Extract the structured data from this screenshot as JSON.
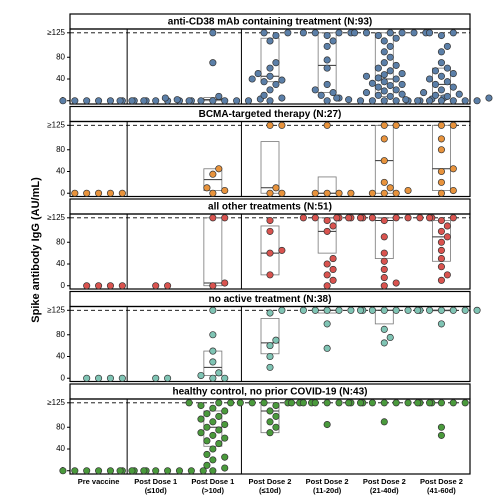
{
  "chart_data": {
    "type": "beeswarm",
    "ylabel": "Spike antibody IgG (AU/mL)",
    "categories": [
      [
        "Pre vaccine"
      ],
      [
        "Post Dose 1",
        "(≤10d)"
      ],
      [
        "Post Dose 1",
        "(>10d)"
      ],
      [
        "Post Dose 2",
        "(≤10d)"
      ],
      [
        "Post Dose 2",
        "(11-20d)"
      ],
      [
        "Post Dose 2",
        "(21-40d)"
      ],
      [
        "Post Dose 2",
        "(41-60d)"
      ]
    ],
    "ylim": [
      -6,
      132
    ],
    "yticks": [
      0,
      40,
      80,
      {
        "value": 125,
        "label": "≥125"
      }
    ],
    "ref_line": 125,
    "facets": [
      {
        "title": "anti-CD38 mAb containing treatment (N:93)",
        "color": "#5b7fa8",
        "groups": [
          {
            "values": [
              0,
              0,
              0,
              0,
              0,
              0,
              0,
              0
            ]
          },
          {
            "values": [
              0,
              0,
              0,
              0,
              0,
              0,
              0
            ]
          },
          {
            "values": [
              0,
              0,
              0,
              0,
              0,
              0,
              2,
              3,
              5,
              8,
              70,
              125
            ],
            "box": {
              "q1": 0,
              "median": 2,
              "q3": 6
            }
          },
          {
            "values": [
              0,
              5,
              10,
              20,
              30,
              35,
              38,
              40,
              45,
              50,
              60,
              70,
              110,
              120,
              125,
              125
            ],
            "box": {
              "q1": 35,
              "median": 45,
              "q3": 115
            }
          },
          {
            "values": [
              0,
              5,
              10,
              15,
              20,
              30,
              60,
              75,
              100,
              110,
              120,
              125,
              125,
              125,
              125
            ],
            "box": {
              "q1": 15,
              "median": 65,
              "q3": 125
            }
          },
          {
            "values": [
              0,
              0,
              0,
              0,
              0,
              0,
              2,
              3,
              5,
              5,
              8,
              10,
              12,
              15,
              18,
              20,
              25,
              28,
              30,
              32,
              35,
              40,
              42,
              45,
              48,
              50,
              55,
              60,
              65,
              70,
              80,
              90,
              100,
              110,
              115,
              120,
              125,
              125,
              125,
              125,
              125,
              125
            ],
            "box": {
              "q1": 8,
              "median": 40,
              "q3": 125
            }
          },
          {
            "values": [
              0,
              0,
              0,
              0,
              0,
              0,
              2,
              5,
              8,
              10,
              12,
              15,
              20,
              25,
              30,
              35,
              40,
              45,
              50,
              55,
              60,
              70,
              90,
              100,
              120,
              125,
              125
            ],
            "box": {
              "q1": 10,
              "median": 30,
              "q3": 60
            }
          }
        ]
      },
      {
        "title": "BCMA-targeted therapy (N:27)",
        "color": "#e8933c",
        "groups": [
          {
            "values": [
              0,
              0,
              0,
              0,
              0
            ]
          },
          {
            "values": []
          },
          {
            "values": [
              0,
              5,
              10,
              35,
              45
            ],
            "box": {
              "q1": 5,
              "median": 25,
              "q3": 45
            }
          },
          {
            "values": [
              0,
              0,
              10,
              125,
              125
            ],
            "box": {
              "q1": 0,
              "median": 10,
              "q3": 95
            }
          },
          {
            "values": [
              0,
              0,
              0,
              0,
              125
            ],
            "box": {
              "q1": 0,
              "median": 0,
              "q3": 30
            }
          },
          {
            "values": [
              0,
              0,
              0,
              5,
              10,
              20,
              60,
              100,
              125,
              125
            ],
            "box": {
              "q1": 0,
              "median": 60,
              "q3": 125
            }
          },
          {
            "values": [
              0,
              5,
              20,
              40,
              45,
              80,
              100,
              125,
              125
            ],
            "box": {
              "q1": 5,
              "median": 45,
              "q3": 125
            }
          }
        ]
      },
      {
        "title": "all other treatments (N:51)",
        "color": "#d9534f",
        "groups": [
          {
            "values": [
              0,
              0,
              0,
              0
            ]
          },
          {
            "values": [
              0,
              0
            ]
          },
          {
            "values": [
              0,
              5,
              125,
              125
            ],
            "box": {
              "q1": 0,
              "median": 5,
              "q3": 125
            }
          },
          {
            "values": [
              20,
              60,
              65,
              100,
              120
            ],
            "box": {
              "q1": 20,
              "median": 60,
              "q3": 110
            }
          },
          {
            "values": [
              0,
              10,
              20,
              30,
              40,
              50,
              100,
              110,
              120,
              125,
              125,
              125,
              125,
              125
            ],
            "box": {
              "q1": 60,
              "median": 100,
              "q3": 125
            }
          },
          {
            "values": [
              0,
              5,
              15,
              30,
              45,
              60,
              90,
              120,
              125,
              125,
              125,
              125,
              125,
              125,
              125,
              125
            ],
            "box": {
              "q1": 50,
              "median": 120,
              "q3": 125
            }
          },
          {
            "values": [
              10,
              20,
              35,
              50,
              65,
              80,
              90,
              100,
              110,
              120,
              125,
              125
            ],
            "box": {
              "q1": 45,
              "median": 90,
              "q3": 120
            }
          }
        ]
      },
      {
        "title": "no active treatment (N:38)",
        "color": "#7fc4b4",
        "groups": [
          {
            "values": [
              0,
              0,
              0,
              0
            ]
          },
          {
            "values": [
              0,
              0
            ]
          },
          {
            "values": [
              0,
              0,
              5,
              10,
              30,
              50,
              80,
              125
            ],
            "box": {
              "q1": 5,
              "median": 20,
              "q3": 50
            }
          },
          {
            "values": [
              20,
              40,
              60,
              70,
              120,
              125
            ],
            "box": {
              "q1": 45,
              "median": 65,
              "q3": 110
            }
          },
          {
            "values": [
              55,
              100,
              125,
              125,
              125,
              125,
              125,
              125
            ],
            "box": {
              "q1": 120,
              "median": 125,
              "q3": 125
            }
          },
          {
            "values": [
              65,
              75,
              90,
              125,
              125,
              125,
              125,
              125,
              125
            ],
            "box": {
              "q1": 100,
              "median": 125,
              "q3": 125
            }
          },
          {
            "values": [
              100,
              125,
              125,
              125,
              125,
              125,
              125
            ],
            "box": {
              "q1": 125,
              "median": 125,
              "q3": 125
            }
          }
        ]
      },
      {
        "title": "healthy control, no prior COVID-19 (N:43)",
        "color": "#4a9a3c",
        "groups": [
          {
            "values": [
              0,
              0,
              0,
              0,
              0,
              0,
              0,
              0
            ]
          },
          {
            "values": [
              0,
              0,
              0,
              0,
              0,
              0,
              0,
              0
            ]
          },
          {
            "values": [
              0,
              5,
              10,
              20,
              25,
              30,
              40,
              50,
              55,
              60,
              65,
              70,
              75,
              80,
              85,
              90,
              95,
              100,
              105,
              110,
              115,
              120,
              125,
              125,
              125
            ],
            "box": {
              "q1": 45,
              "median": 80,
              "q3": 110
            }
          },
          {
            "values": [
              70,
              80,
              90,
              100,
              110,
              120,
              125,
              125,
              125,
              125,
              125,
              125
            ],
            "box": {
              "q1": 70,
              "median": 110,
              "q3": 125
            }
          },
          {
            "values": [
              85,
              125,
              125,
              125,
              125,
              125,
              125,
              125
            ]
          },
          {
            "values": [
              90,
              125,
              125,
              125,
              125,
              125,
              125,
              125,
              125
            ]
          },
          {
            "values": [
              65,
              80,
              125,
              125,
              125,
              125,
              125
            ]
          }
        ]
      }
    ]
  }
}
